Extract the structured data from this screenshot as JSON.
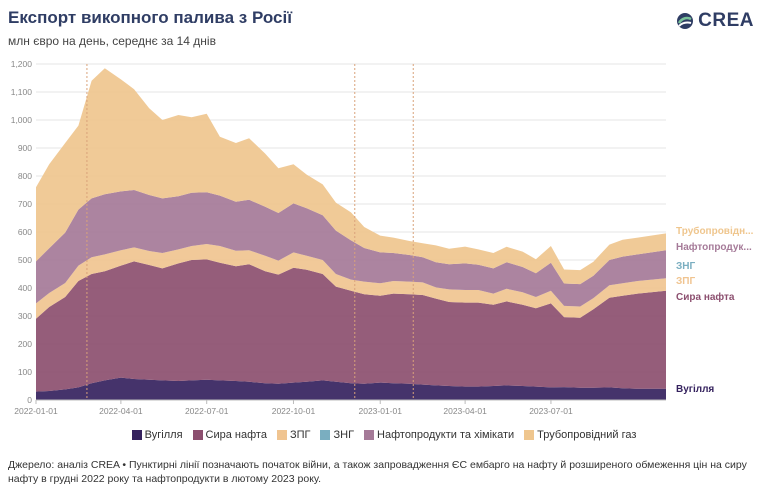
{
  "header": {
    "title": "Експорт викопного палива з Росії",
    "subtitle": "млн євро на день, середнє за 14 днів",
    "logo_text": "CREA"
  },
  "source_note": "Джерело: аналіз CREA • Пунктирні лінії позначають початок війни, а також запровадження ЄС ембарго на нафту й розширеного обмеження цін на сиру нафту в грудні 2022 року та нафтопродукти в лютому 2023 року.",
  "chart_data": {
    "type": "area",
    "stacked": true,
    "ylim": [
      0,
      1200
    ],
    "yticks": [
      0,
      100,
      200,
      300,
      400,
      500,
      600,
      700,
      800,
      900,
      1000,
      1100,
      1200
    ],
    "ytick_labels": [
      "0",
      "100",
      "200",
      "300",
      "400",
      "500",
      "600",
      "700",
      "800",
      "900",
      "1,000",
      "1,100",
      "1,200"
    ],
    "xlim": [
      "2022-01-01",
      "2023-10-31"
    ],
    "xticks": [
      "2022-01-01",
      "2022-04-01",
      "2022-07-01",
      "2022-10-01",
      "2023-01-01",
      "2023-04-01",
      "2023-07-01"
    ],
    "xtick_labels": [
      "2022-01-01",
      "2022-04-01",
      "2022-07-01",
      "2022-10-01",
      "2023-01-01",
      "2023-04-01",
      "2023-07-01"
    ],
    "vlines": [
      "2022-02-24",
      "2022-12-05",
      "2023-02-05"
    ],
    "grid": true,
    "legend_position": "bottom",
    "x": [
      "2022-01-01",
      "2022-01-15",
      "2022-02-01",
      "2022-02-15",
      "2022-03-01",
      "2022-03-15",
      "2022-04-01",
      "2022-04-15",
      "2022-05-01",
      "2022-05-15",
      "2022-06-01",
      "2022-06-15",
      "2022-07-01",
      "2022-07-15",
      "2022-08-01",
      "2022-08-15",
      "2022-09-01",
      "2022-09-15",
      "2022-10-01",
      "2022-10-15",
      "2022-11-01",
      "2022-11-15",
      "2022-12-01",
      "2022-12-15",
      "2023-01-01",
      "2023-01-15",
      "2023-02-01",
      "2023-02-15",
      "2023-03-01",
      "2023-03-15",
      "2023-04-01",
      "2023-04-15",
      "2023-05-01",
      "2023-05-15",
      "2023-06-01",
      "2023-06-15",
      "2023-07-01",
      "2023-07-15",
      "2023-08-01",
      "2023-08-15",
      "2023-09-01",
      "2023-09-15",
      "2023-10-01",
      "2023-10-31"
    ],
    "series": [
      {
        "name": "Вугілля",
        "color": "#35225e",
        "end_label": "Вугілля",
        "values": [
          30,
          32,
          38,
          45,
          60,
          70,
          80,
          75,
          72,
          70,
          68,
          70,
          72,
          70,
          68,
          65,
          60,
          58,
          62,
          65,
          70,
          65,
          60,
          58,
          62,
          60,
          58,
          55,
          52,
          50,
          48,
          48,
          50,
          52,
          50,
          48,
          45,
          46,
          44,
          44,
          45,
          42,
          40,
          40
        ]
      },
      {
        "name": "Сира нафта",
        "color": "#8c4f6f",
        "end_label": "Сира нафта",
        "values": [
          260,
          300,
          330,
          380,
          390,
          390,
          400,
          420,
          410,
          400,
          420,
          430,
          430,
          420,
          410,
          420,
          400,
          390,
          410,
          400,
          380,
          340,
          330,
          320,
          310,
          320,
          320,
          320,
          310,
          300,
          300,
          300,
          290,
          300,
          290,
          280,
          300,
          250,
          250,
          280,
          320,
          330,
          340,
          350
        ]
      },
      {
        "name": "ЗПГ",
        "color": "#f0c490",
        "end_label": "ЗПГ",
        "values": [
          55,
          50,
          50,
          55,
          60,
          60,
          55,
          50,
          50,
          55,
          50,
          50,
          55,
          60,
          55,
          50,
          55,
          50,
          55,
          50,
          50,
          45,
          40,
          45,
          45,
          45,
          45,
          45,
          40,
          45,
          45,
          45,
          40,
          45,
          45,
          40,
          45,
          40,
          40,
          40,
          45,
          45,
          45,
          45
        ]
      },
      {
        "name": "ЗНГ",
        "color": "#7aaec0",
        "end_label": "ЗНГ",
        "values": [
          0,
          0,
          0,
          0,
          0,
          0,
          0,
          0,
          0,
          0,
          0,
          0,
          0,
          0,
          0,
          0,
          0,
          0,
          0,
          0,
          0,
          0,
          0,
          0,
          0,
          0,
          0,
          0,
          0,
          0,
          0,
          0,
          0,
          0,
          0,
          0,
          0,
          0,
          0,
          0,
          0,
          0,
          0,
          0
        ]
      },
      {
        "name": "Нафтопродукти та хімікати",
        "color": "#a57a98",
        "end_label": "Нафтопродук...",
        "values": [
          150,
          160,
          180,
          200,
          210,
          215,
          210,
          205,
          200,
          195,
          190,
          190,
          185,
          180,
          175,
          180,
          175,
          170,
          175,
          170,
          160,
          155,
          140,
          120,
          110,
          100,
          95,
          90,
          90,
          90,
          95,
          90,
          90,
          95,
          90,
          85,
          100,
          80,
          80,
          80,
          90,
          95,
          95,
          100
        ]
      },
      {
        "name": "Трубопровідний газ",
        "color": "#efc68e",
        "end_label": "Трубопровідн...",
        "values": [
          265,
          300,
          320,
          300,
          420,
          450,
          400,
          360,
          310,
          280,
          290,
          270,
          280,
          210,
          210,
          220,
          190,
          160,
          140,
          120,
          110,
          100,
          100,
          75,
          60,
          55,
          50,
          50,
          60,
          55,
          60,
          55,
          55,
          55,
          55,
          50,
          60,
          50,
          50,
          50,
          55,
          60,
          60,
          60
        ]
      }
    ]
  }
}
